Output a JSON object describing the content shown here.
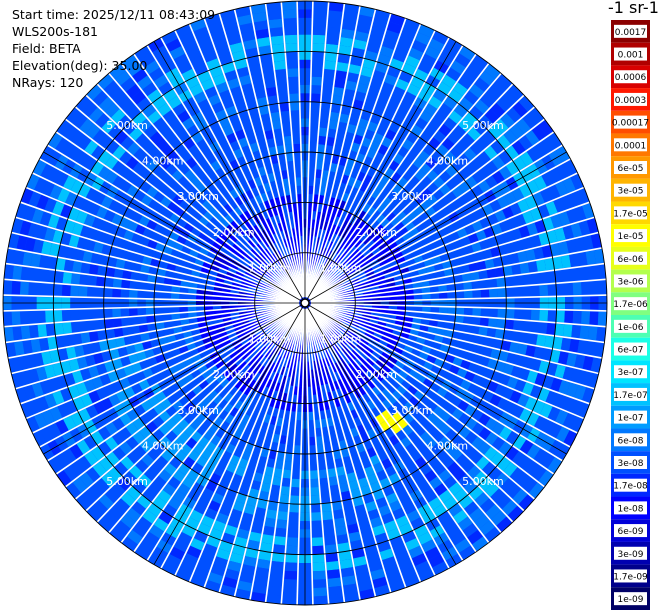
{
  "info": {
    "start_time": "Start time: 2025/12/11 08:43:09",
    "instrument": "WLS200s-181",
    "field": "Field: BETA",
    "elevation": "Elevation(deg): 35.00",
    "nrays": "NRays: 120"
  },
  "colorbar": {
    "title": "-1 sr-1",
    "labels": [
      "0.0017",
      "0.001",
      "0.0006",
      "0.0003",
      "0.00017",
      "0.0001",
      "6e-05",
      "3e-05",
      "1.7e-05",
      "1e-05",
      "6e-06",
      "3e-06",
      "1.7e-06",
      "1e-06",
      "6e-07",
      "3e-07",
      "1.7e-07",
      "1e-07",
      "6e-08",
      "3e-08",
      "1.7e-08",
      "1e-08",
      "6e-09",
      "3e-09",
      "1.7e-09",
      "1e-09"
    ],
    "colors": [
      "#8b0000",
      "#b00000",
      "#d80000",
      "#ff1800",
      "#ff4d00",
      "#ff7800",
      "#ff9800",
      "#ffb400",
      "#ffd800",
      "#ffff00",
      "#e6ff1a",
      "#b3ff4d",
      "#80ff80",
      "#4dffb3",
      "#1affe6",
      "#00e5ff",
      "#00c2ff",
      "#009cff",
      "#0078ff",
      "#0050ff",
      "#0028ff",
      "#0000ff",
      "#0000d8",
      "#0000b0",
      "#00008b",
      "#000066"
    ]
  },
  "chart_data": {
    "type": "heatmap",
    "projection": "polar (plan position indicator)",
    "field": "BETA",
    "elevation_deg": 35.0,
    "n_rays": 120,
    "range_rings_km": [
      1,
      2,
      3,
      4,
      5
    ],
    "ring_labels": [
      "1.00km",
      "2.00km",
      "3.00km",
      "4.00km",
      "5.00km"
    ],
    "max_range_km": 6,
    "spokes_deg": [
      0,
      30,
      60,
      90,
      120,
      150,
      180,
      210,
      240,
      270,
      300,
      330
    ],
    "color_scale": "log",
    "value_range": [
      1e-09,
      0.0017
    ],
    "dominant_value": "3e-08",
    "features": [
      {
        "description": "enhanced ring",
        "range_km": [
          4.7,
          5.4
        ],
        "value": "1.7e-07"
      },
      {
        "description": "enhanced band south",
        "range_km": [
          3.3,
          4.3
        ],
        "value": "1e-07"
      },
      {
        "description": "hot spot",
        "azimuth_deg": [
          140,
          150
        ],
        "range_km": [
          2.6,
          3.2
        ],
        "value": "1e-05"
      }
    ]
  }
}
